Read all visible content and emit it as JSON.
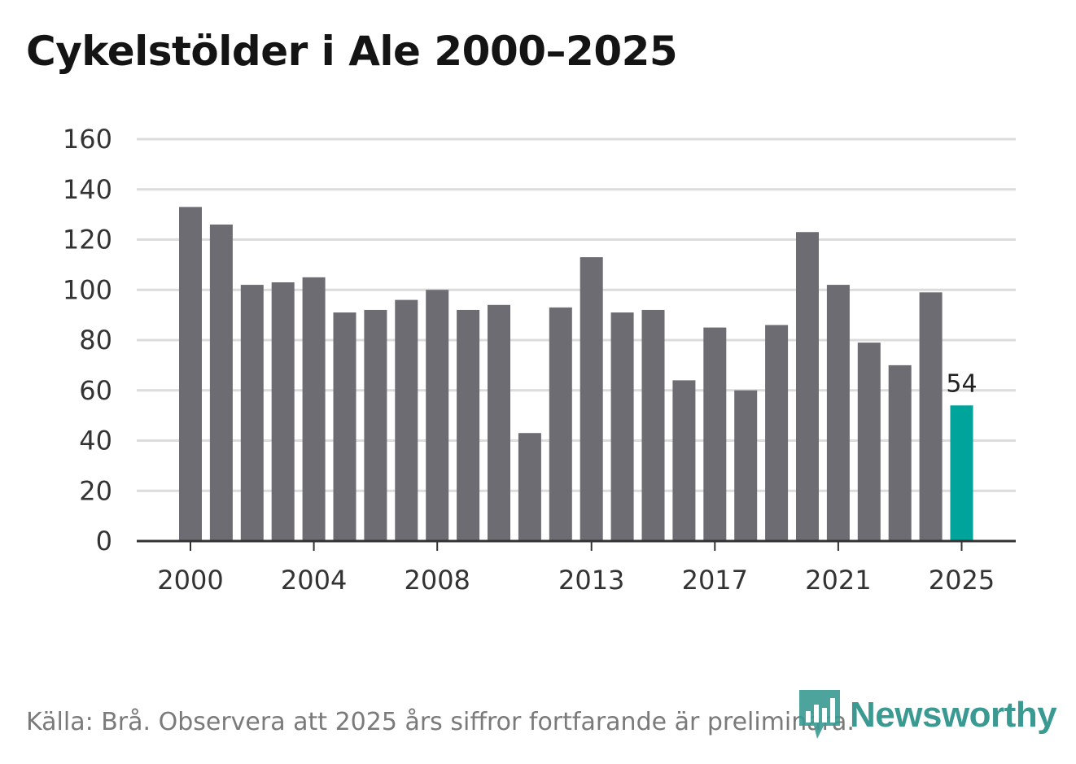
{
  "title": "Cykelstölder i Ale 2000–2025",
  "footer": "Källa: Brå. Observera att 2025 års siffror fortfarande är preliminära.",
  "brand": "Newsworthy",
  "colors": {
    "bar": "#6d6c72",
    "highlight": "#00a49a",
    "grid": "#dcdcdc",
    "axis": "#333333",
    "brand": "#3a9a92"
  },
  "chart_data": {
    "type": "bar",
    "title": "Cykelstölder i Ale 2000–2025",
    "xlabel": "",
    "ylabel": "",
    "ylim": [
      0,
      160
    ],
    "yticks": [
      0,
      20,
      40,
      60,
      80,
      100,
      120,
      140,
      160
    ],
    "grid": true,
    "categories": [
      "2000",
      "2001",
      "2002",
      "2003",
      "2004",
      "2005",
      "2006",
      "2007",
      "2008",
      "2009",
      "2010",
      "2011",
      "2012",
      "2013",
      "2014",
      "2015",
      "2016",
      "2017",
      "2018",
      "2019",
      "2020",
      "2021",
      "2022",
      "2023",
      "2024",
      "2025"
    ],
    "values": [
      133,
      126,
      102,
      103,
      105,
      91,
      92,
      96,
      100,
      92,
      94,
      43,
      93,
      113,
      91,
      92,
      64,
      85,
      60,
      86,
      123,
      102,
      79,
      70,
      99,
      54
    ],
    "xtick_labels": [
      "2000",
      "2004",
      "2008",
      "2013",
      "2017",
      "2021",
      "2025"
    ],
    "highlight_category": "2025",
    "data_label": {
      "category": "2025",
      "text": "54"
    }
  }
}
